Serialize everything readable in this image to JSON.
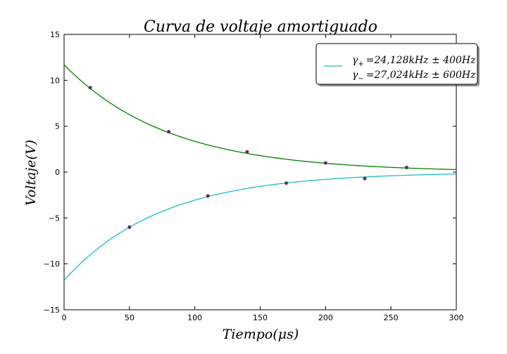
{
  "chart_data": {
    "type": "line",
    "title": "Curva de voltaje amortiguado",
    "xlabel": "Tiempo(μs)",
    "ylabel": "Voltaje(V)",
    "xlim": [
      0,
      300
    ],
    "ylim": [
      -15,
      15
    ],
    "xticks": [
      0,
      50,
      100,
      150,
      200,
      250,
      300
    ],
    "yticks": [
      -15,
      -10,
      -5,
      0,
      5,
      10,
      15
    ],
    "xtick_labels": [
      "0",
      "50",
      "100",
      "150",
      "200",
      "250",
      "300"
    ],
    "ytick_labels": [
      "−15",
      "−10",
      "−5",
      "0",
      "5",
      "10",
      "15"
    ],
    "grid": false,
    "legend_position": "top-right",
    "series": [
      {
        "name": "γ+ = 24,128kHz ± 400Hz",
        "kind": "fit",
        "color": "#008000",
        "amplitude": 11.7,
        "decay_per_us": 0.0125,
        "points": [
          {
            "x": 20,
            "y": 9.2
          },
          {
            "x": 80,
            "y": 4.4
          },
          {
            "x": 140,
            "y": 2.2
          },
          {
            "x": 200,
            "y": 1.0
          },
          {
            "x": 262,
            "y": 0.5
          }
        ]
      },
      {
        "name": "γ− = 27,024kHz ± 600Hz",
        "kind": "fit",
        "color": "#1ebebe",
        "amplitude": -11.8,
        "decay_per_us": 0.0135,
        "points": [
          {
            "x": 50,
            "y": -6.0
          },
          {
            "x": 110,
            "y": -2.6
          },
          {
            "x": 170,
            "y": -1.2
          },
          {
            "x": 230,
            "y": -0.7
          }
        ]
      }
    ],
    "point_colors": {
      "marker": "#1f3f8f",
      "edge": "#a83232"
    }
  },
  "legend": {
    "line_color": "#1ebebe",
    "entries": [
      {
        "symbol": "γ",
        "sub": "+",
        "value": "=24,128kHz ± 400Hz"
      },
      {
        "symbol": "γ",
        "sub": "−",
        "value": "=27,024kHz ± 600Hz"
      }
    ]
  }
}
